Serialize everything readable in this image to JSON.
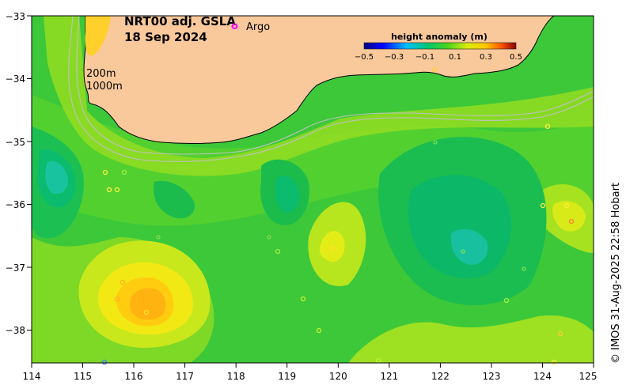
{
  "map": {
    "title_line1": "NRT00 adj. GSLA",
    "title_line2": "18 Sep 2024",
    "argo_marker": "o",
    "argo_label": "Argo",
    "contour_label_200": "200m",
    "contour_label_1000": "1000m",
    "credit": "© IMOS 31-Aug-2025 22:58 Hobart",
    "land_color": "#f9c99b"
  },
  "colorbar": {
    "title": "height anomaly (m)",
    "ticks": [
      "−0.5",
      "−0.3",
      "−0.1",
      "0.1",
      "0.3",
      "0.5"
    ]
  },
  "x_ticks": [
    "114",
    "115",
    "116",
    "117",
    "118",
    "119",
    "120",
    "121",
    "122",
    "123",
    "124",
    "125"
  ],
  "y_ticks": [
    "−33",
    "−34",
    "−35",
    "−36",
    "−37",
    "−38"
  ]
}
